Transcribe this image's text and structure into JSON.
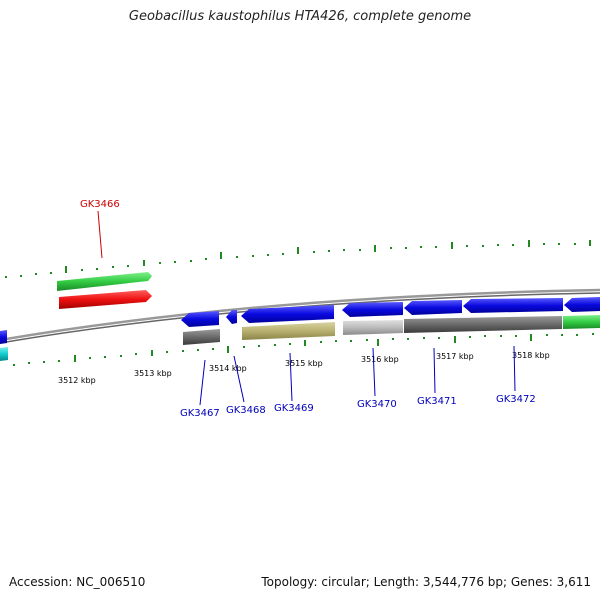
{
  "header": {
    "title": "Geobacillus kaustophilus HTA426, complete genome"
  },
  "footer": {
    "accession": "Accession: NC_006510",
    "summary": "Topology: circular; Length: 3,544,776 bp; Genes: 3,611"
  },
  "scale_labels": [
    "3512 kbp",
    "3513 kbp",
    "3514 kbp",
    "3515 kbp",
    "3516 kbp",
    "3517 kbp",
    "3518 kbp"
  ],
  "gene_labels": [
    {
      "name": "GK3466",
      "color": "#cc0000"
    },
    {
      "name": "GK3467",
      "color": "#0000bb"
    },
    {
      "name": "GK3468",
      "color": "#0000bb"
    },
    {
      "name": "GK3469",
      "color": "#0000bb"
    },
    {
      "name": "GK3470",
      "color": "#0000bb"
    },
    {
      "name": "GK3471",
      "color": "#0000bb"
    },
    {
      "name": "GK3472",
      "color": "#0000bb"
    }
  ],
  "colors": {
    "cds_blue": "#0a0ae0",
    "rna_green": "#33cc44",
    "gene_red": "#ee1111",
    "cyan": "#11cccc",
    "olive": "#b8b070",
    "light_gray": "#bbbbbb",
    "dark_gray": "#6a6a6a",
    "backbone": "#888888",
    "tick_green": "#228822"
  }
}
